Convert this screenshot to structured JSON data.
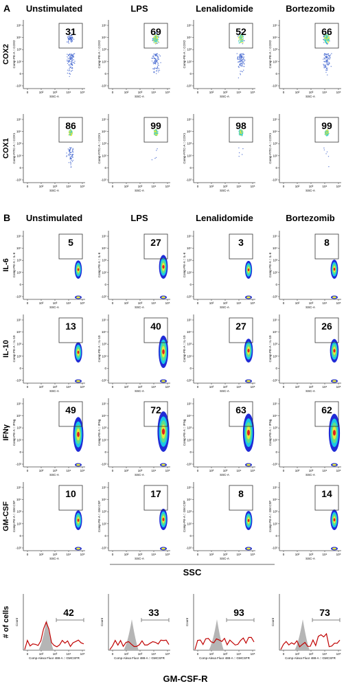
{
  "panel_a": {
    "label": "A",
    "columns": [
      "Unstimulated",
      "LPS",
      "Lenalidomide",
      "Bortezomib"
    ],
    "y_axis_labels": {
      "COX2": "Comp-PE-A :: COX2",
      "COX1": "Comp-FITC-A :: COX1"
    },
    "x_axis_label": "SSC-A"
  },
  "panel_b": {
    "label": "B",
    "columns": [
      "Unstimulated",
      "LPS",
      "Lenalidomide",
      "Bortezomib"
    ],
    "x_axis_label": "SSC-A",
    "shared_x_title": "SSC",
    "y_axis_labels": {
      "IL-6": "Comp-PE-A :: IL-6",
      "IL-10": "Comp-PE-A :: IL-10",
      "IFNγ": "Comp-PE-A :: IFNg",
      "GM-CSF": "Comp-PE-A :: GM CSF"
    },
    "histogram": {
      "y_title": "# of cells",
      "y_axis_label": "Count",
      "x_axis_label": "Comp-Alexa Fluor 488-A :: GMCSFR",
      "x_title": "GM-CSF-R"
    }
  },
  "colors": {
    "scatter_dots": "#3a5fcd",
    "density_low": "#1f2bd6",
    "density_mid": "#19c8e6",
    "density_high": "#e8e83a",
    "density_peak": "#e02020",
    "histogram_line": "#c00000",
    "histogram_fill": "#b5b5b5"
  },
  "chart_data": [
    {
      "type": "scatter",
      "title": "Panel A - COX2",
      "x_axis": "SSC-A",
      "y_axis": "COX2",
      "series": [
        {
          "name": "Unstimulated",
          "values": [
            31
          ]
        },
        {
          "name": "LPS",
          "values": [
            69
          ]
        },
        {
          "name": "Lenalidomide",
          "values": [
            52
          ]
        },
        {
          "name": "Bortezomib",
          "values": [
            66
          ]
        }
      ],
      "value_unit": "% gated"
    },
    {
      "type": "scatter",
      "title": "Panel A - COX1",
      "x_axis": "SSC-A",
      "y_axis": "COX1",
      "series": [
        {
          "name": "Unstimulated",
          "values": [
            86
          ]
        },
        {
          "name": "LPS",
          "values": [
            99
          ]
        },
        {
          "name": "Lenalidomide",
          "values": [
            98
          ]
        },
        {
          "name": "Bortezomib",
          "values": [
            99
          ]
        }
      ],
      "value_unit": "% gated"
    },
    {
      "type": "heatmap",
      "title": "Panel B - cytokines",
      "categories": [
        "Unstimulated",
        "LPS",
        "Lenalidomide",
        "Bortezomib"
      ],
      "series": [
        {
          "name": "IL-6",
          "values": [
            5,
            27,
            3,
            8
          ]
        },
        {
          "name": "IL-10",
          "values": [
            13,
            40,
            27,
            26
          ]
        },
        {
          "name": "IFNγ",
          "values": [
            49,
            72,
            63,
            62
          ]
        },
        {
          "name": "GM-CSF",
          "values": [
            10,
            17,
            8,
            14
          ]
        }
      ],
      "xlabel": "SSC",
      "value_unit": "% gated"
    },
    {
      "type": "line",
      "title": "Panel B - GM-CSF-R histogram",
      "categories": [
        "Unstimulated",
        "LPS",
        "Lenalidomide",
        "Bortezomib"
      ],
      "values": [
        42,
        33,
        93,
        73
      ],
      "xlabel": "GM-CSF-R",
      "ylabel": "# of cells",
      "value_unit": "% gated"
    }
  ]
}
